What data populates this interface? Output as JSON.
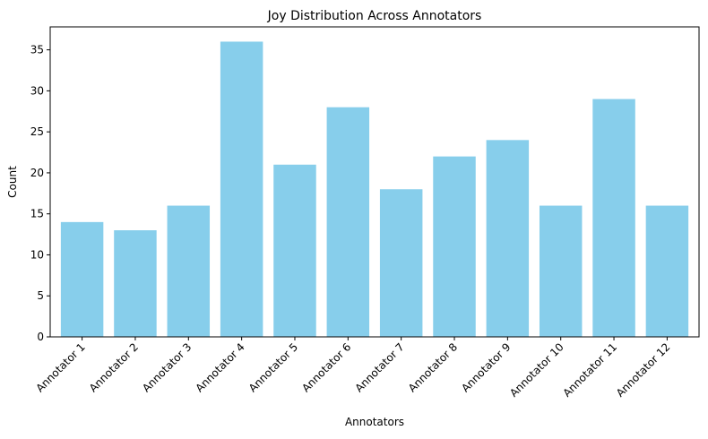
{
  "chart_data": {
    "type": "bar",
    "title": "Joy Distribution Across Annotators",
    "xlabel": "Annotators",
    "ylabel": "Count",
    "categories": [
      "Annotator 1",
      "Annotator 2",
      "Annotator 3",
      "Annotator 4",
      "Annotator 5",
      "Annotator 6",
      "Annotator 7",
      "Annotator 8",
      "Annotator 9",
      "Annotator 10",
      "Annotator 11",
      "Annotator 12"
    ],
    "values": [
      14,
      13,
      16,
      36,
      21,
      28,
      18,
      22,
      24,
      16,
      29,
      16
    ],
    "ylim": [
      0,
      37.8
    ],
    "yticks": [
      0,
      5,
      10,
      15,
      20,
      25,
      30,
      35
    ],
    "bar_color": "#87ceeb",
    "grid": false,
    "x_tick_rotation": 45
  }
}
